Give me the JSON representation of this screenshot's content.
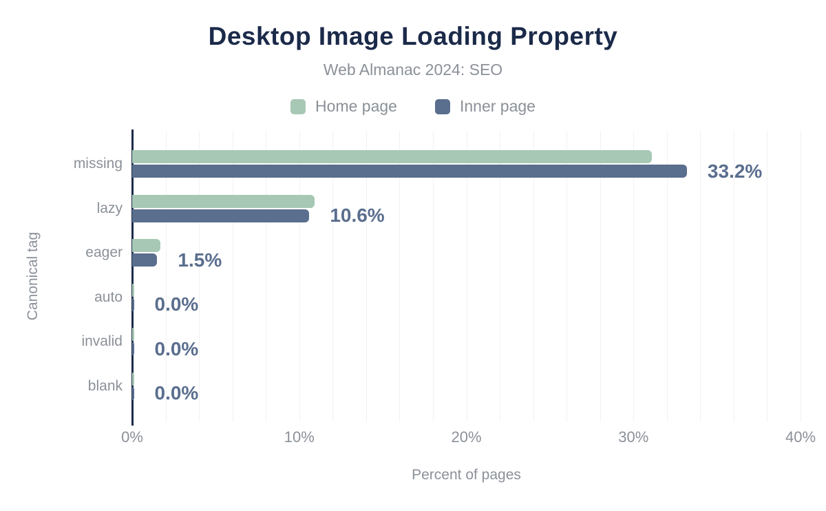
{
  "title": "Desktop Image Loading Property",
  "subtitle": "Web Almanac 2024: SEO",
  "legend": [
    {
      "label": "Home page",
      "color": "#a7c8b4"
    },
    {
      "label": "Inner page",
      "color": "#5a6e8e"
    }
  ],
  "colors": {
    "title": "#1b2a49",
    "muted": "#8b9098",
    "axis": "#1b2a49",
    "gridline": "#f1f1f4",
    "value_label": "#5a6e8e",
    "home_series": "#a7c8b4",
    "inner_series": "#5a6e8e"
  },
  "chart_data": {
    "type": "bar",
    "orientation": "horizontal",
    "title": "Desktop Image Loading Property",
    "subtitle": "Web Almanac 2024: SEO",
    "categories": [
      "missing",
      "lazy",
      "eager",
      "auto",
      "invalid",
      "blank"
    ],
    "series": [
      {
        "name": "Home page",
        "color": "#a7c8b4",
        "values": [
          31.1,
          10.9,
          1.7,
          0.0,
          0.0,
          0.0
        ]
      },
      {
        "name": "Inner page",
        "color": "#5a6e8e",
        "values": [
          33.2,
          10.6,
          1.5,
          0.0,
          0.0,
          0.0
        ]
      }
    ],
    "data_labels": [
      "33.2%",
      "10.6%",
      "1.5%",
      "0.0%",
      "0.0%",
      "0.0%"
    ],
    "data_labels_series": "Inner page",
    "xlabel": "Percent of pages",
    "ylabel": "Canonical tag",
    "xlim": [
      0,
      40
    ],
    "x_ticks": [
      {
        "label": "0%",
        "value": 0
      },
      {
        "label": "10%",
        "value": 10
      },
      {
        "label": "20%",
        "value": 20
      },
      {
        "label": "30%",
        "value": 30
      },
      {
        "label": "40%",
        "value": 40
      }
    ],
    "grid_step": 2,
    "grid": true,
    "legend_position": "top"
  }
}
